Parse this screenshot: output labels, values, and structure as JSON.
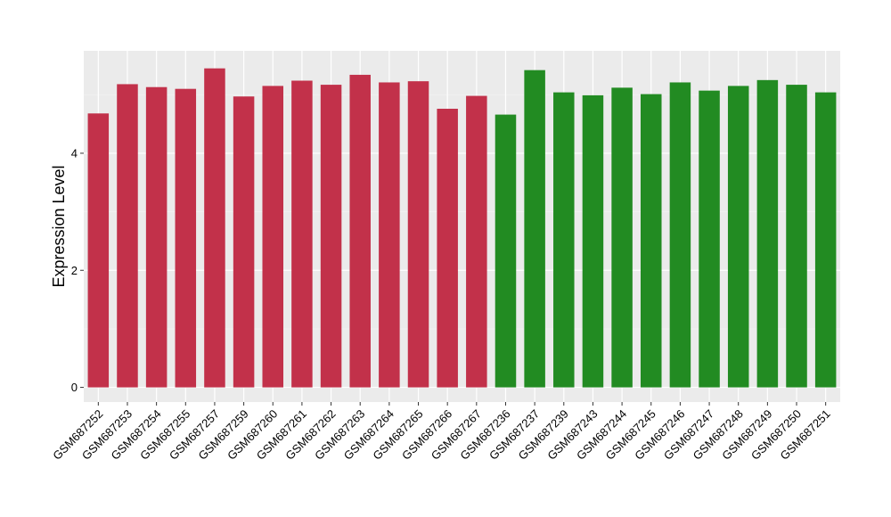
{
  "chart_data": {
    "type": "bar",
    "title": "",
    "xlabel": "",
    "ylabel": "Expression Level",
    "ylim": [
      -0.25,
      5.75
    ],
    "yticks": [
      0,
      2,
      4
    ],
    "grid": true,
    "background": "#EBEBEB",
    "categories": [
      "GSM687252",
      "GSM687253",
      "GSM687254",
      "GSM687255",
      "GSM687257",
      "GSM687259",
      "GSM687260",
      "GSM687261",
      "GSM687262",
      "GSM687263",
      "GSM687264",
      "GSM687265",
      "GSM687266",
      "GSM687267",
      "GSM687236",
      "GSM687237",
      "GSM687239",
      "GSM687243",
      "GSM687244",
      "GSM687245",
      "GSM687246",
      "GSM687247",
      "GSM687248",
      "GSM687249",
      "GSM687250",
      "GSM687251"
    ],
    "values": [
      4.68,
      5.18,
      5.13,
      5.1,
      5.45,
      4.97,
      5.15,
      5.24,
      5.17,
      5.34,
      5.21,
      5.23,
      4.76,
      4.98,
      4.66,
      5.42,
      5.04,
      4.99,
      5.12,
      5.01,
      5.21,
      5.07,
      5.15,
      5.25,
      5.17,
      5.04
    ],
    "groups": [
      "g1",
      "g1",
      "g1",
      "g1",
      "g1",
      "g1",
      "g1",
      "g1",
      "g1",
      "g1",
      "g1",
      "g1",
      "g1",
      "g1",
      "g2",
      "g2",
      "g2",
      "g2",
      "g2",
      "g2",
      "g2",
      "g2",
      "g2",
      "g2",
      "g2",
      "g2"
    ],
    "group_colors": {
      "g1": "#C2314A",
      "g2": "#228B22"
    }
  }
}
